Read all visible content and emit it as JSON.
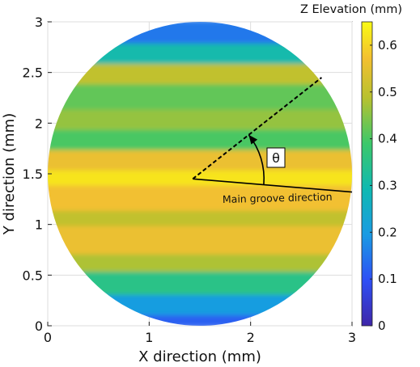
{
  "chart_data": {
    "type": "heatmap",
    "title": "",
    "xlabel": "X direction (mm)",
    "ylabel": "Y direction (mm)",
    "xlim": [
      0,
      3
    ],
    "ylim": [
      0,
      3
    ],
    "x_ticks": [
      0,
      1,
      2,
      3
    ],
    "y_ticks": [
      0,
      0.5,
      1,
      1.5,
      2,
      2.5,
      3
    ],
    "x_tick_labels": [
      "0",
      "1",
      "2",
      "3"
    ],
    "y_tick_labels": [
      "0",
      "0.5",
      "1",
      "1.5",
      "2",
      "2.5",
      "3"
    ],
    "grid": true,
    "colormap": "viridis-like (blue-teal-green-yellow)",
    "colorbar": {
      "label": "Z  Elevation (mm)",
      "range": [
        0,
        0.65
      ],
      "ticks": [
        0,
        0.1,
        0.2,
        0.3,
        0.4,
        0.5,
        0.6
      ],
      "tick_labels": [
        "0",
        "0.1",
        "0.2",
        "0.3",
        "0.4",
        "0.5",
        "0.6"
      ],
      "location": "right"
    },
    "sample_region": {
      "shape": "circle",
      "center": [
        1.5,
        1.5
      ],
      "radius": 1.5
    },
    "elevation_bands": [
      {
        "y_range": [
          0.0,
          0.12
        ],
        "value": 0.12
      },
      {
        "y_range": [
          0.12,
          0.32
        ],
        "value": 0.2
      },
      {
        "y_range": [
          0.32,
          0.55
        ],
        "value": 0.35
      },
      {
        "y_range": [
          0.55,
          0.72
        ],
        "value": 0.48
      },
      {
        "y_range": [
          0.72,
          1.0
        ],
        "value": 0.56
      },
      {
        "y_range": [
          1.0,
          1.15
        ],
        "value": 0.5
      },
      {
        "y_range": [
          1.15,
          1.4
        ],
        "value": 0.57
      },
      {
        "y_range": [
          1.4,
          1.55
        ],
        "value": 0.62
      },
      {
        "y_range": [
          1.55,
          1.75
        ],
        "value": 0.56
      },
      {
        "y_range": [
          1.75,
          1.95
        ],
        "value": 0.4
      },
      {
        "y_range": [
          1.95,
          2.15
        ],
        "value": 0.46
      },
      {
        "y_range": [
          2.15,
          2.4
        ],
        "value": 0.42
      },
      {
        "y_range": [
          2.4,
          2.6
        ],
        "value": 0.5
      },
      {
        "y_range": [
          2.6,
          2.8
        ],
        "value": 0.3
      },
      {
        "y_range": [
          2.8,
          3.0
        ],
        "value": 0.15
      }
    ],
    "annotations": {
      "main_groove_label": "Main groove direction",
      "angle_label": "θ",
      "origin": [
        1.43,
        1.45
      ],
      "groove_line_end": [
        3.0,
        1.32
      ],
      "dashed_line_end": [
        2.7,
        2.45
      ]
    }
  }
}
